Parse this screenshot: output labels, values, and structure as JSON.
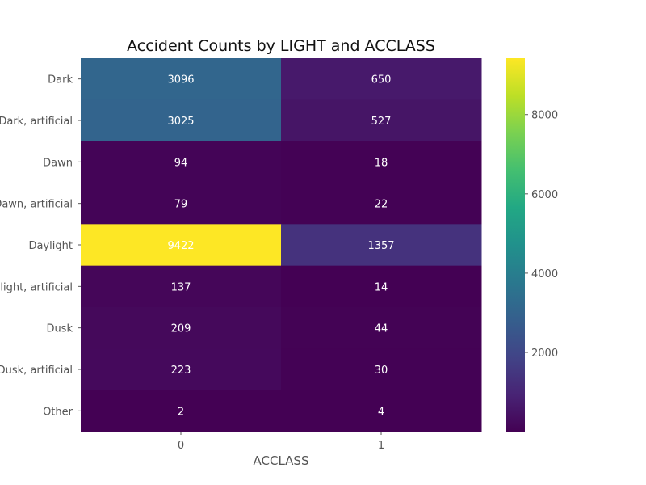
{
  "chart_data": {
    "type": "heatmap",
    "title": "Accident Counts by LIGHT and ACCLASS",
    "xlabel": "ACCLASS",
    "ylabel": "",
    "x_categories": [
      "0",
      "1"
    ],
    "y_categories": [
      "Dark",
      "Dark, artificial",
      "Dawn",
      "Dawn, artificial",
      "Daylight",
      "Daylight, artificial",
      "Dusk",
      "Dusk, artificial",
      "Other"
    ],
    "values": [
      [
        3096,
        650
      ],
      [
        3025,
        527
      ],
      [
        94,
        18
      ],
      [
        79,
        22
      ],
      [
        9422,
        1357
      ],
      [
        137,
        14
      ],
      [
        209,
        44
      ],
      [
        223,
        30
      ],
      [
        2,
        4
      ]
    ],
    "colormap": "viridis",
    "value_range": [
      2,
      9422
    ],
    "colorbar_ticks": [
      2000,
      4000,
      6000,
      8000
    ],
    "colorbar_tick_labels": [
      "2000",
      "4000",
      "6000",
      "8000"
    ]
  }
}
